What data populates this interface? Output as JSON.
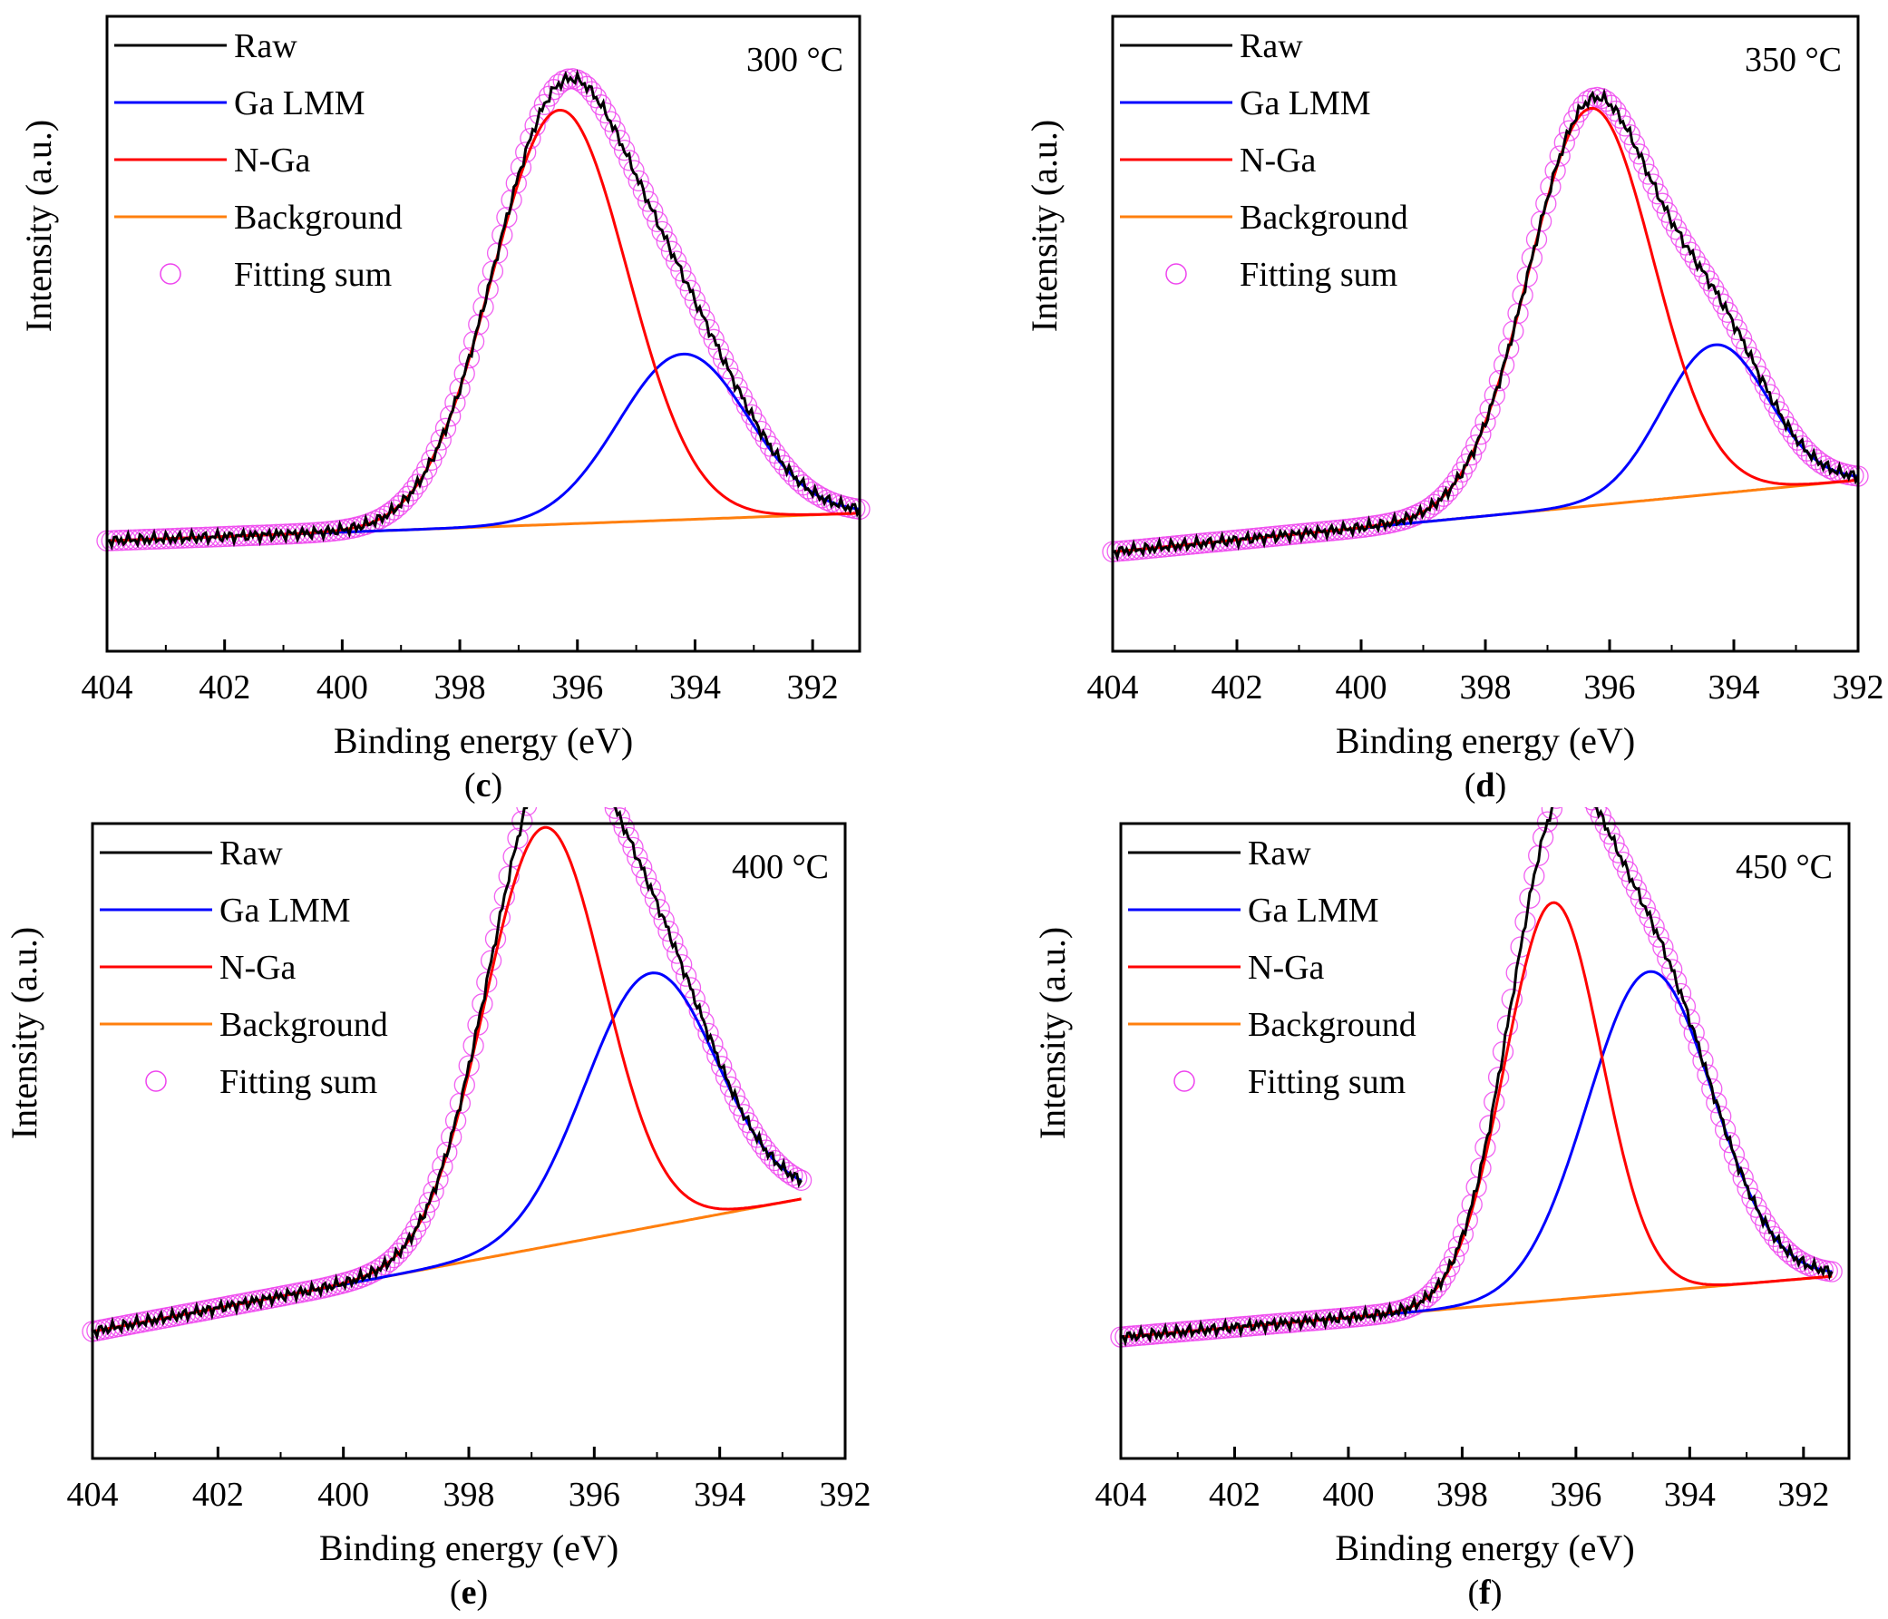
{
  "chart_data": [
    {
      "type": "line",
      "panel_label": "c",
      "annotation": "300 °C",
      "xlabel": "Binding energy (eV)",
      "ylabel": "Intensity (a.u.)",
      "xlim": [
        404,
        391.2
      ],
      "ylim": [
        0,
        1.15
      ],
      "xticks": [
        "404",
        "402",
        "400",
        "398",
        "396",
        "394",
        "392"
      ],
      "tick_values": [
        404,
        402,
        400,
        398,
        396,
        394,
        392
      ],
      "background": {
        "x": [
          404,
          391.2
        ],
        "y": [
          0.2,
          0.25
        ]
      },
      "n_ga": {
        "center": 396.3,
        "amplitude": 0.75,
        "sigma": 1.15
      },
      "ga_lmm": {
        "center": 394.2,
        "amplitude": 0.3,
        "sigma": 1.1
      },
      "series": [
        {
          "name": "Raw",
          "color": "#000000"
        },
        {
          "name": "Ga LMM",
          "color": "#0000ff"
        },
        {
          "name": "N-Ga",
          "color": "#ff0000"
        },
        {
          "name": "Background",
          "color": "#ff7f0e"
        },
        {
          "name": "Fitting sum",
          "color": "#ee44ee"
        }
      ]
    },
    {
      "type": "line",
      "panel_label": "d",
      "annotation": "350 °C",
      "xlabel": "Binding energy (eV)",
      "ylabel": "Intensity (a.u.)",
      "xlim": [
        404,
        392
      ],
      "ylim": [
        0,
        1.15
      ],
      "xticks": [
        "404",
        "402",
        "400",
        "398",
        "396",
        "394",
        "392"
      ],
      "tick_values": [
        404,
        402,
        400,
        398,
        396,
        394,
        392
      ],
      "background": {
        "x": [
          404,
          392
        ],
        "y": [
          0.18,
          0.31
        ]
      },
      "n_ga": {
        "center": 396.3,
        "amplitude": 0.72,
        "sigma": 1.0
      },
      "ga_lmm": {
        "center": 394.3,
        "amplitude": 0.27,
        "sigma": 0.85
      },
      "series": [
        {
          "name": "Raw",
          "color": "#000000"
        },
        {
          "name": "Ga LMM",
          "color": "#0000ff"
        },
        {
          "name": "N-Ga",
          "color": "#ff0000"
        },
        {
          "name": "Background",
          "color": "#ff7f0e"
        },
        {
          "name": "Fitting sum",
          "color": "#ee44ee"
        }
      ]
    },
    {
      "type": "line",
      "panel_label": "e",
      "annotation": "400 °C",
      "xlabel": "Binding energy (eV)",
      "ylabel": "Intensity (a.u.)",
      "xlim": [
        404,
        392
      ],
      "ylim": [
        0,
        1.15
      ],
      "xticks": [
        "404",
        "402",
        "400",
        "398",
        "396",
        "394",
        "392"
      ],
      "tick_values": [
        404,
        402,
        400,
        398,
        396,
        394,
        392
      ],
      "background": {
        "x": [
          404,
          392.7
        ],
        "y": [
          0.23,
          0.47
        ]
      },
      "n_ga": {
        "center": 396.8,
        "amplitude": 0.76,
        "sigma": 0.95
      },
      "ga_lmm": {
        "center": 395.1,
        "amplitude": 0.46,
        "sigma": 1.05
      },
      "series": [
        {
          "name": "Raw",
          "color": "#000000"
        },
        {
          "name": "Ga LMM",
          "color": "#0000ff"
        },
        {
          "name": "N-Ga",
          "color": "#ff0000"
        },
        {
          "name": "Background",
          "color": "#ff7f0e"
        },
        {
          "name": "Fitting sum",
          "color": "#ee44ee"
        }
      ]
    },
    {
      "type": "line",
      "panel_label": "f",
      "annotation": "450 °C",
      "xlabel": "Binding energy (eV)",
      "ylabel": "Intensity (a.u.)",
      "xlim": [
        404,
        391.2
      ],
      "ylim": [
        0,
        1.15
      ],
      "xticks": [
        "404",
        "402",
        "400",
        "398",
        "396",
        "394",
        "392"
      ],
      "tick_values": [
        404,
        402,
        400,
        398,
        396,
        394,
        392
      ],
      "background": {
        "x": [
          404,
          391.5
        ],
        "y": [
          0.22,
          0.33
        ]
      },
      "n_ga": {
        "center": 396.4,
        "amplitude": 0.72,
        "sigma": 0.85
      },
      "ga_lmm": {
        "center": 394.7,
        "amplitude": 0.58,
        "sigma": 1.1
      },
      "series": [
        {
          "name": "Raw",
          "color": "#000000"
        },
        {
          "name": "Ga LMM",
          "color": "#0000ff"
        },
        {
          "name": "N-Ga",
          "color": "#ff0000"
        },
        {
          "name": "Background",
          "color": "#ff7f0e"
        },
        {
          "name": "Fitting sum",
          "color": "#ee44ee"
        }
      ]
    }
  ]
}
